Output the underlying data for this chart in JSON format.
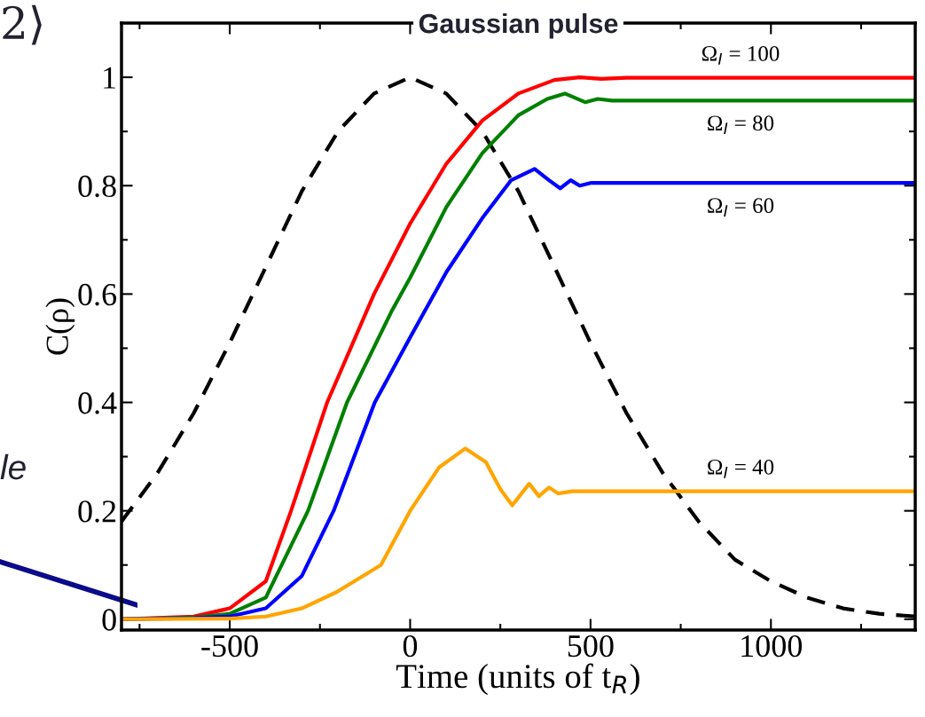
{
  "chart_data": {
    "type": "line",
    "title": "Gaussian pulse",
    "xlabel": "Time (units of t$_{R}$)",
    "ylabel": "C(ρ)",
    "xlim": [
      -800,
      1400
    ],
    "ylim": [
      -0.02,
      1.1
    ],
    "xticks": [
      {
        "value": -750,
        "label": null
      },
      -500,
      {
        "value": -250,
        "label": null
      },
      0,
      {
        "value": 250,
        "label": null
      },
      500,
      {
        "value": 750,
        "label": null
      },
      1000,
      {
        "value": 1250,
        "label": null
      }
    ],
    "yticks": [
      0,
      {
        "value": 0.1,
        "label": null
      },
      0.2,
      {
        "value": 0.3,
        "label": null
      },
      0.4,
      {
        "value": 0.5,
        "label": null
      },
      0.6,
      {
        "value": 0.7,
        "label": null
      },
      0.8,
      {
        "value": 0.9,
        "label": null
      },
      1
    ],
    "grid": false,
    "legend": false,
    "marker": "none",
    "series": [
      {
        "color": "#000000",
        "line_style": "dashed",
        "x": [
          -800,
          -700,
          -600,
          -500,
          -400,
          -300,
          -200,
          -100,
          0,
          100,
          200,
          300,
          400,
          500,
          600,
          700,
          800,
          900,
          1000,
          1100,
          1200,
          1300,
          1400
        ],
        "values": [
          0.18,
          0.27,
          0.38,
          0.51,
          0.65,
          0.79,
          0.9,
          0.97,
          1.0,
          0.97,
          0.9,
          0.79,
          0.65,
          0.51,
          0.38,
          0.27,
          0.18,
          0.11,
          0.07,
          0.04,
          0.02,
          0.01,
          0.005
        ]
      },
      {
        "name": "Ω$_{I}$ = 100",
        "color": "#ff0000",
        "line_style": "solid",
        "x": [
          -800,
          -600,
          -500,
          -400,
          -330,
          -230,
          -100,
          0,
          100,
          200,
          300,
          400,
          470,
          530,
          600,
          1400
        ],
        "values": [
          0,
          0.005,
          0.02,
          0.07,
          0.2,
          0.4,
          0.6,
          0.73,
          0.84,
          0.92,
          0.97,
          0.995,
          1.0,
          0.997,
          0.999,
          0.999
        ]
      },
      {
        "name": "Ω$_{I}$ = 80",
        "color": "#008000",
        "line_style": "solid",
        "x": [
          -800,
          -600,
          -500,
          -400,
          -283,
          -175,
          -50,
          0,
          100,
          200,
          300,
          380,
          429,
          485,
          520,
          560,
          1400
        ],
        "values": [
          0,
          0.003,
          0.01,
          0.04,
          0.2,
          0.4,
          0.57,
          0.63,
          0.76,
          0.86,
          0.93,
          0.96,
          0.97,
          0.954,
          0.96,
          0.957,
          0.957
        ]
      },
      {
        "name": "Ω$_{I}$ = 60",
        "color": "#0000ff",
        "line_style": "solid",
        "x": [
          -800,
          -600,
          -500,
          -400,
          -300,
          -212,
          -98,
          0,
          100,
          200,
          280,
          345,
          385,
          416,
          445,
          470,
          500,
          1400
        ],
        "values": [
          0,
          0.002,
          0.005,
          0.02,
          0.08,
          0.2,
          0.4,
          0.52,
          0.64,
          0.74,
          0.81,
          0.831,
          0.81,
          0.795,
          0.81,
          0.8,
          0.805,
          0.805
        ]
      },
      {
        "name": "Ω$_{I}$ = 40",
        "color": "#ffa500",
        "line_style": "solid",
        "x": [
          -800,
          -500,
          -400,
          -300,
          -204,
          -81,
          0,
          80,
          153,
          210,
          250,
          283,
          330,
          357,
          385,
          410,
          450,
          1400
        ],
        "values": [
          0,
          0.001,
          0.005,
          0.02,
          0.05,
          0.1,
          0.2,
          0.28,
          0.315,
          0.29,
          0.24,
          0.21,
          0.25,
          0.227,
          0.243,
          0.232,
          0.236,
          0.236
        ]
      }
    ],
    "annotations": [
      "2⟩",
      "le"
    ]
  }
}
